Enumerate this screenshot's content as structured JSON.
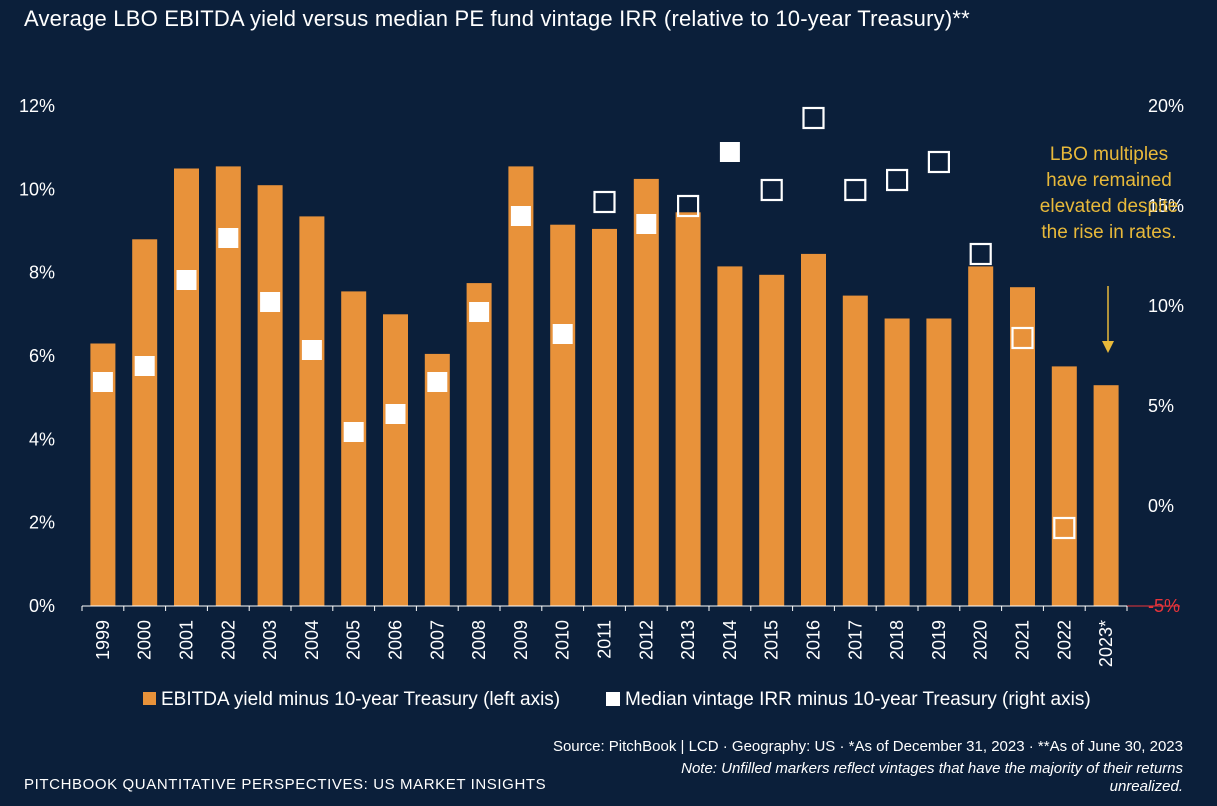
{
  "title": "Average LBO EBITDA yield versus median PE fund vintage IRR (relative to 10-year Treasury)**",
  "source": "Source: PitchBook | LCD ·  Geography: US  ·  *As of December 31, 2023  ·  **As of June 30, 2023",
  "note": "Note: Unfilled markers reflect vintages that have the majority of their returns unrealized.",
  "footer": "PITCHBOOK QUANTITATIVE PERSPECTIVES: US MARKET INSIGHTS",
  "annotation": "LBO multiples have remained elevated despite the rise in rates.",
  "colors": {
    "background": "#0b1f3a",
    "bar": "#e8923a",
    "marker": "#ffffff",
    "annotation": "#e8b93a",
    "negative_tick": "#e8343a"
  },
  "chart_data": {
    "type": "bar",
    "categories": [
      "1999",
      "2000",
      "2001",
      "2002",
      "2003",
      "2004",
      "2005",
      "2006",
      "2007",
      "2008",
      "2009",
      "2010",
      "2011",
      "2012",
      "2013",
      "2014",
      "2015",
      "2016",
      "2017",
      "2018",
      "2019",
      "2020",
      "2021",
      "2022",
      "2023*"
    ],
    "series": [
      {
        "name": "EBITDA yield minus 10-year Treasury (left axis)",
        "axis": "left",
        "type": "bar",
        "values": [
          6.3,
          8.8,
          10.5,
          10.55,
          10.1,
          9.35,
          7.55,
          7.0,
          6.05,
          7.75,
          10.55,
          9.15,
          9.05,
          10.25,
          9.45,
          8.15,
          7.95,
          8.45,
          7.45,
          6.9,
          6.9,
          8.15,
          7.65,
          5.75,
          5.3
        ]
      },
      {
        "name": "Median vintage IRR minus 10-year Treasury (right axis)",
        "axis": "right",
        "type": "marker",
        "values": [
          6.2,
          7.0,
          11.3,
          13.4,
          10.2,
          7.8,
          3.7,
          4.6,
          6.2,
          9.7,
          14.5,
          8.6,
          15.2,
          14.1,
          15.0,
          17.7,
          15.8,
          19.4,
          15.8,
          16.3,
          17.2,
          12.6,
          8.4,
          -1.1,
          null
        ],
        "unfilled": [
          false,
          false,
          false,
          false,
          false,
          false,
          false,
          false,
          false,
          false,
          false,
          false,
          true,
          false,
          true,
          false,
          true,
          true,
          true,
          true,
          true,
          true,
          true,
          true,
          false
        ]
      }
    ],
    "left_axis": {
      "ylim": [
        0,
        12
      ],
      "ticks": [
        "0%",
        "2%",
        "4%",
        "6%",
        "8%",
        "10%",
        "12%"
      ]
    },
    "right_axis": {
      "ylim": [
        -5,
        20
      ],
      "ticks": [
        "-5%",
        "0%",
        "5%",
        "10%",
        "15%",
        "20%"
      ]
    },
    "legend": {
      "position": "bottom",
      "items": [
        {
          "label": "EBITDA yield minus 10-year Treasury (left axis)",
          "symbol": "bar"
        },
        {
          "label": "Median vintage IRR minus 10-year Treasury (right axis)",
          "symbol": "marker"
        }
      ]
    },
    "grid": false
  }
}
